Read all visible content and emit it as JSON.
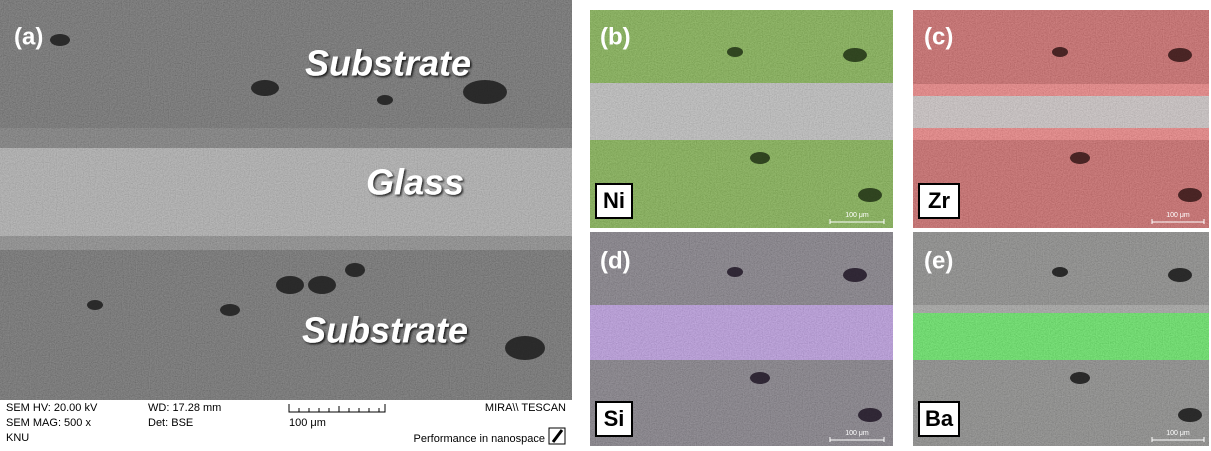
{
  "panels": [
    {
      "label": "(a)",
      "regions": [
        "Substrate",
        "Glass",
        "Substrate"
      ],
      "info": {
        "row1": [
          "SEM HV: 20.00 kV",
          "WD: 17.28 mm",
          "MIRA\\\\ TESCAN"
        ],
        "row2": [
          "SEM MAG: 500 x",
          "Det: BSE",
          "100 μm"
        ],
        "row3": [
          "KNU",
          "Performance in nanospace"
        ]
      }
    },
    {
      "label": "(b)",
      "element": "Ni",
      "scale": "100 μm"
    },
    {
      "label": "(c)",
      "element": "Zr",
      "scale": "100 μm"
    },
    {
      "label": "(d)",
      "element": "Si",
      "scale": "100 μm"
    },
    {
      "label": "(e)",
      "element": "Ba",
      "scale": "100 μm"
    }
  ]
}
